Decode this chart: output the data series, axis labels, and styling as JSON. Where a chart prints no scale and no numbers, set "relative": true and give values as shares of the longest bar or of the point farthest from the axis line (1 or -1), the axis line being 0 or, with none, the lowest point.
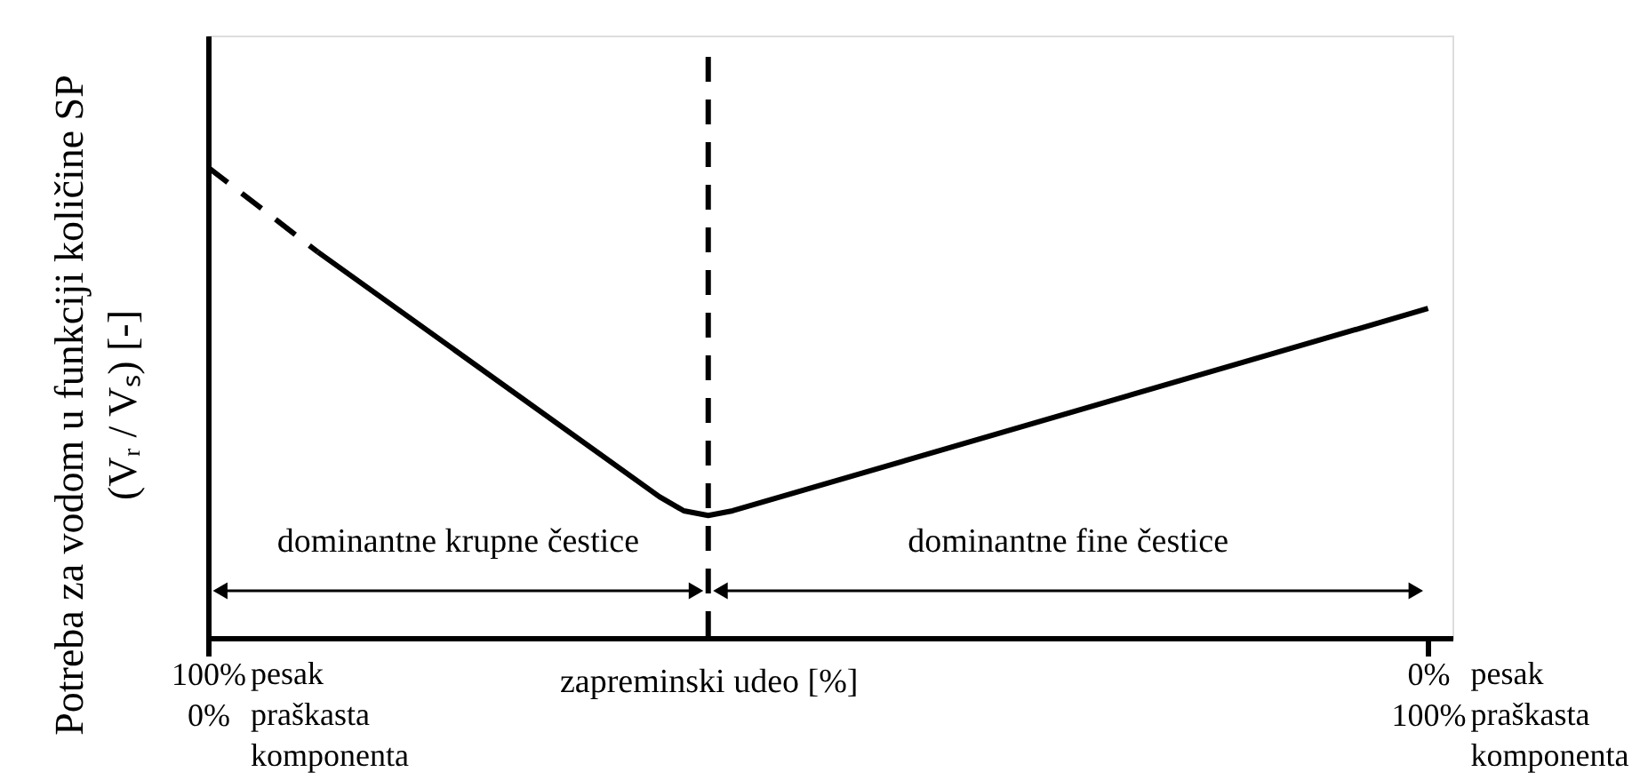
{
  "chart_data": {
    "type": "line",
    "relative": true,
    "xlabel": "zapreminski udeo [%]",
    "ylabel": "Potreba za vodom u funkciji količine SP\n(Vᵣ / Vₛ) [-]",
    "xlim": [
      100,
      -2
    ],
    "xticks": [
      {
        "value": 100,
        "label": "100%"
      },
      {
        "value": 0,
        "label": "0%"
      }
    ],
    "x2lim": [
      0,
      102
    ],
    "x2ticks": [
      {
        "value": 0,
        "label": "0%"
      },
      {
        "value": 100,
        "label": "100%"
      }
    ],
    "series": [
      {
        "color": "#000000",
        "line_style": "dashed",
        "x": [
          100,
          91
        ],
        "values": [
          1.0,
          0.82
        ]
      },
      {
        "color": "#000000",
        "line_style": "solid",
        "x": [
          91,
          63,
          61,
          59,
          57,
          0
        ],
        "values": [
          0.82,
          0.3,
          0.27,
          0.26,
          0.27,
          0.7
        ]
      },
      {
        "name": "dominantne krupne čestice",
        "color": "#000000",
        "line_style": "solid",
        "marker": "triangle",
        "x": [
          99,
          60
        ],
        "values": [
          0.1,
          0.1
        ]
      },
      {
        "name": "dominantne fine čestice",
        "color": "#000000",
        "line_style": "solid",
        "marker": "triangle",
        "x": [
          58,
          1
        ],
        "values": [
          0.1,
          0.1
        ]
      }
    ],
    "ref_lines": [
      {
        "axis": "x",
        "value": 59,
        "color": "#000000",
        "line_style": "dashed"
      }
    ],
    "annotations": [
      "pesak",
      "praškasta\nkomponenta",
      "pesak",
      "praškasta\nkomponenta"
    ]
  }
}
